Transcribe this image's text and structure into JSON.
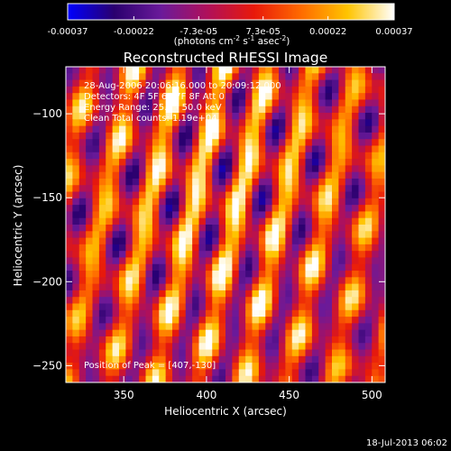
{
  "colorbar": {
    "tick_values": [
      -0.00037,
      -0.00022,
      -7.3e-05,
      7.3e-05,
      0.00022,
      0.00037
    ],
    "tick_labels": [
      "-0.00037",
      "-0.00022",
      "-7.3e-05",
      "7.3e-05",
      "0.00022",
      "0.00037"
    ],
    "range": [
      -0.00037,
      0.00037
    ],
    "unit_label_main": "(photons cm",
    "unit_exp1": "-2",
    "unit_mid": " s",
    "unit_exp2": "-1",
    "unit_tail": " asec",
    "unit_exp3": "-2",
    "unit_close": ")",
    "colormap": [
      "#0000ff",
      "#2a006e",
      "#6a1a9a",
      "#b0105a",
      "#e8190a",
      "#ff6a00",
      "#ffc400",
      "#ffffff"
    ]
  },
  "chart_data": {
    "type": "heatmap",
    "title": "Reconstructed RHESSI Image",
    "xlabel": "Heliocentric X (arcsec)",
    "ylabel": "Heliocentric Y (arcsec)",
    "xlim": [
      315,
      508
    ],
    "ylim": [
      -260,
      -72
    ],
    "xticks": [
      350,
      400,
      450,
      500
    ],
    "yticks": [
      -100,
      -150,
      -200,
      -250
    ],
    "xtick_labels": [
      "350",
      "400",
      "450",
      "500"
    ],
    "ytick_labels": [
      "−100",
      "−150",
      "−200",
      "−250"
    ],
    "annotations": [
      "28-Aug-2006 20:06:16.000 to 20:09:12.000",
      "Detectors: 4F 5F 6F 7F 8F  Att 0",
      "Energy Range: 25.0 - 50.0 keV",
      "Clean    Total counts: 1.19e+04"
    ],
    "peak_label": "Position of Peak = [407,-130]",
    "peak": [
      407,
      -130
    ],
    "colormap_note": "rhessi-style blue-purple-red-yellow-white"
  },
  "footer": {
    "timestamp": "18-Jul-2013 06:02"
  }
}
